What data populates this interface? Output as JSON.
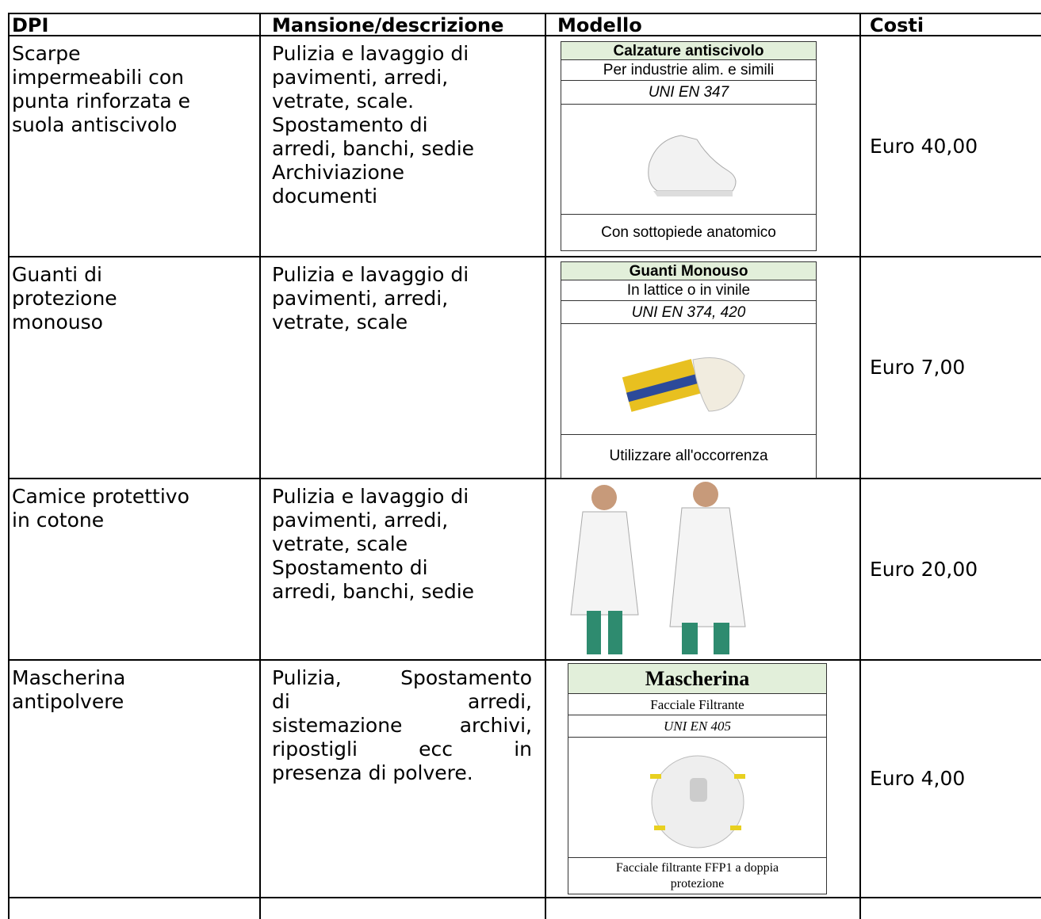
{
  "table": {
    "header": [
      "DPI",
      "Mansione/descrizione",
      "Modello",
      "Costi"
    ],
    "rows": [
      {
        "dpi": [
          "Scarpe",
          "impermeabili con",
          "punta rinforzata e",
          "suola antiscivolo"
        ],
        "description": [
          "Pulizia e lavaggio di",
          "pavimenti, arredi,",
          "vetrate, scale.",
          "Spostamento di",
          "arredi, banchi, sedie",
          "Archiviazione",
          "documenti"
        ],
        "model": {
          "title": "Calzature antiscivolo",
          "subtitle": "Per industrie alim. e simili",
          "standard": "UNI EN 347",
          "note": [
            "Con sottopiede anatomico"
          ]
        },
        "cost": "Euro 40,00"
      },
      {
        "dpi": [
          "Guanti di",
          "protezione",
          "monouso"
        ],
        "description": [
          "Pulizia e lavaggio di",
          "pavimenti, arredi,",
          "vetrate, scale"
        ],
        "model": {
          "title": "Guanti Monouso",
          "subtitle": "In lattice o in vinile",
          "standard": "UNI EN 374, 420",
          "note": [
            "Utilizzare all'occorrenza"
          ]
        },
        "cost": "Euro 7,00"
      },
      {
        "dpi": [
          "Camice protettivo",
          "in cotone"
        ],
        "description": [
          "Pulizia e lavaggio di",
          "pavimenti, arredi,",
          "vetrate, scale",
          "Spostamento di",
          "arredi, banchi, sedie"
        ],
        "cost": "Euro 20,00"
      },
      {
        "dpi": [
          "Mascherina",
          "antipolvere"
        ],
        "description": [
          "Pulizia, Spostamento",
          "di arredi,",
          "sistemazione archivi,",
          "ripostigli ecc in",
          "presenza di polvere."
        ],
        "model": {
          "title": "Mascherina",
          "subtitle": "Facciale Filtrante",
          "standard": "UNI EN 405",
          "note": [
            "Facciale filtrante FFP1 a doppia",
            "protezione"
          ]
        },
        "cost": "Euro 4,00"
      }
    ]
  }
}
